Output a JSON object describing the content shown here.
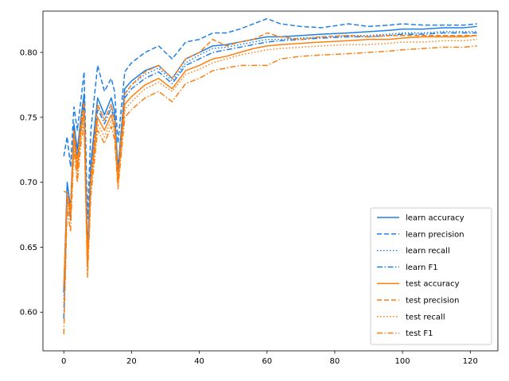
{
  "chart_data": {
    "type": "line",
    "title": "",
    "xlabel": "",
    "ylabel": "",
    "xlim": [
      -6.15,
      128.15
    ],
    "ylim": [
      0.5702,
      0.8318
    ],
    "xticks": [
      0,
      20,
      40,
      60,
      80,
      100,
      120
    ],
    "yticks": [
      0.6,
      0.65,
      0.7,
      0.75,
      0.8
    ],
    "grid": false,
    "legend_position": "lower-right",
    "colors": {
      "learn": "#1f7fe8",
      "test": "#ff7f0e"
    },
    "x": [
      0,
      1,
      2,
      3,
      4,
      5,
      6,
      7,
      8,
      10,
      12,
      14,
      15,
      16,
      18,
      20,
      24,
      28,
      32,
      36,
      40,
      44,
      48,
      52,
      56,
      60,
      64,
      70,
      76,
      84,
      90,
      96,
      100,
      106,
      112,
      118,
      122
    ],
    "series": [
      {
        "name": "learn accuracy",
        "color": "#1f7fe8",
        "dash": "solid",
        "values": [
          0.615,
          0.7,
          0.68,
          0.745,
          0.725,
          0.748,
          0.768,
          0.645,
          0.715,
          0.765,
          0.752,
          0.765,
          0.755,
          0.71,
          0.772,
          0.778,
          0.786,
          0.79,
          0.78,
          0.795,
          0.8,
          0.805,
          0.806,
          0.808,
          0.81,
          0.812,
          0.812,
          0.813,
          0.814,
          0.815,
          0.816,
          0.817,
          0.818,
          0.818,
          0.819,
          0.819,
          0.82
        ]
      },
      {
        "name": "learn precision",
        "color": "#1f7fe8",
        "dash": "6,3",
        "values": [
          0.72,
          0.735,
          0.712,
          0.758,
          0.74,
          0.762,
          0.785,
          0.672,
          0.74,
          0.79,
          0.77,
          0.78,
          0.77,
          0.73,
          0.785,
          0.792,
          0.8,
          0.805,
          0.795,
          0.808,
          0.81,
          0.815,
          0.815,
          0.818,
          0.822,
          0.826,
          0.822,
          0.82,
          0.819,
          0.822,
          0.82,
          0.821,
          0.822,
          0.821,
          0.821,
          0.821,
          0.822
        ]
      },
      {
        "name": "learn recall",
        "color": "#1f7fe8",
        "dash": "1.5,2.5",
        "values": [
          0.61,
          0.695,
          0.675,
          0.74,
          0.72,
          0.745,
          0.765,
          0.64,
          0.71,
          0.76,
          0.748,
          0.76,
          0.75,
          0.705,
          0.768,
          0.775,
          0.783,
          0.788,
          0.778,
          0.792,
          0.798,
          0.803,
          0.804,
          0.806,
          0.808,
          0.81,
          0.81,
          0.811,
          0.812,
          0.813,
          0.813,
          0.814,
          0.815,
          0.815,
          0.816,
          0.816,
          0.816
        ]
      },
      {
        "name": "learn F1",
        "color": "#1f7fe8",
        "dash": "7,2.5,1.5,2.5",
        "values": [
          0.595,
          0.69,
          0.67,
          0.738,
          0.718,
          0.742,
          0.762,
          0.638,
          0.705,
          0.757,
          0.745,
          0.757,
          0.747,
          0.702,
          0.765,
          0.772,
          0.78,
          0.785,
          0.776,
          0.79,
          0.795,
          0.8,
          0.802,
          0.804,
          0.806,
          0.808,
          0.809,
          0.81,
          0.811,
          0.812,
          0.812,
          0.813,
          0.814,
          0.814,
          0.815,
          0.815,
          0.815
        ]
      },
      {
        "name": "test accuracy",
        "color": "#ff7f0e",
        "dash": "solid",
        "values": [
          0.62,
          0.69,
          0.675,
          0.735,
          0.71,
          0.738,
          0.755,
          0.635,
          0.7,
          0.75,
          0.74,
          0.752,
          0.742,
          0.7,
          0.76,
          0.766,
          0.775,
          0.78,
          0.772,
          0.786,
          0.79,
          0.795,
          0.797,
          0.8,
          0.803,
          0.805,
          0.806,
          0.807,
          0.808,
          0.809,
          0.81,
          0.81,
          0.811,
          0.812,
          0.812,
          0.812,
          0.813
        ]
      },
      {
        "name": "test precision",
        "color": "#ff7f0e",
        "dash": "6,3",
        "values": [
          0.693,
          0.692,
          0.68,
          0.74,
          0.715,
          0.745,
          0.762,
          0.64,
          0.705,
          0.76,
          0.748,
          0.76,
          0.748,
          0.705,
          0.768,
          0.775,
          0.785,
          0.79,
          0.78,
          0.795,
          0.8,
          0.81,
          0.805,
          0.808,
          0.81,
          0.815,
          0.812,
          0.81,
          0.812,
          0.813,
          0.812,
          0.813,
          0.813,
          0.813,
          0.813,
          0.813,
          0.813
        ]
      },
      {
        "name": "test recall",
        "color": "#ff7f0e",
        "dash": "1.5,2.5",
        "values": [
          0.605,
          0.685,
          0.67,
          0.73,
          0.705,
          0.733,
          0.75,
          0.63,
          0.695,
          0.745,
          0.735,
          0.748,
          0.738,
          0.698,
          0.756,
          0.762,
          0.772,
          0.777,
          0.77,
          0.783,
          0.787,
          0.792,
          0.795,
          0.798,
          0.8,
          0.802,
          0.803,
          0.804,
          0.805,
          0.806,
          0.806,
          0.807,
          0.808,
          0.808,
          0.809,
          0.809,
          0.81
        ]
      },
      {
        "name": "test F1",
        "color": "#ff7f0e",
        "dash": "7,2.5,1.5,2.5",
        "values": [
          0.583,
          0.68,
          0.662,
          0.725,
          0.7,
          0.728,
          0.745,
          0.627,
          0.69,
          0.74,
          0.73,
          0.743,
          0.733,
          0.695,
          0.75,
          0.756,
          0.765,
          0.77,
          0.762,
          0.776,
          0.78,
          0.786,
          0.788,
          0.79,
          0.79,
          0.79,
          0.795,
          0.797,
          0.798,
          0.799,
          0.8,
          0.801,
          0.802,
          0.803,
          0.804,
          0.804,
          0.805
        ]
      }
    ]
  }
}
